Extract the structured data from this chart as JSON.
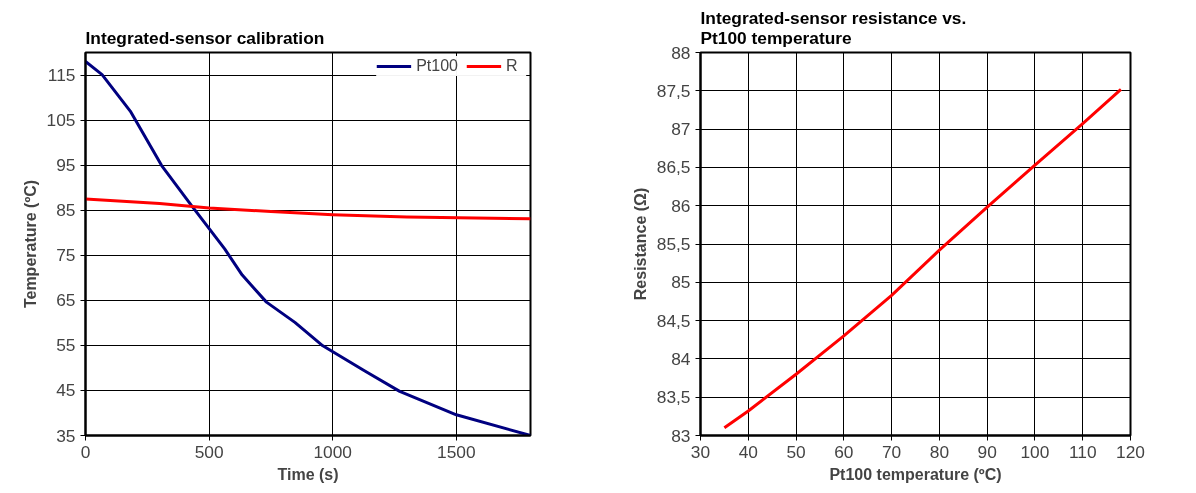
{
  "chart_data": [
    {
      "type": "line",
      "title": "Integrated-sensor calibration",
      "xlabel": "Time (s)",
      "ylabel": "Temperature (ºC)",
      "legend": "top right",
      "grid": true,
      "xlim": [
        0,
        1800
      ],
      "xticks": [
        0,
        500,
        1000,
        1500
      ],
      "ylim": [
        35,
        120
      ],
      "yticks": [
        35,
        45,
        55,
        65,
        75,
        85,
        95,
        105,
        115
      ],
      "series": [
        {
          "name": "Pt100",
          "color": "#000080",
          "x": [
            0,
            67,
            181,
            308,
            429,
            563,
            634,
            732,
            847,
            960,
            1130,
            1271,
            1500,
            1800
          ],
          "values": [
            118,
            115.1,
            107,
            94.9,
            86,
            76.4,
            70.6,
            64.6,
            60.1,
            54.9,
            49.3,
            44.8,
            39.6,
            35
          ]
        },
        {
          "name": "R",
          "color": "#ff0000",
          "x": [
            0,
            300,
            500,
            750,
            1000,
            1300,
            1800
          ],
          "values": [
            87.5,
            86.5,
            85.5,
            84.7,
            84,
            83.5,
            83.1
          ]
        }
      ]
    },
    {
      "type": "line",
      "title": "Integrated-sensor resistance vs. Pt100 temperature",
      "xlabel": "Pt100 temperature (ºC)",
      "ylabel": "Resistance (Ω)",
      "grid": true,
      "xlim": [
        30,
        120
      ],
      "xticks": [
        30,
        40,
        50,
        60,
        70,
        80,
        90,
        100,
        110,
        120
      ],
      "ylim": [
        83,
        88
      ],
      "yticks": [
        83,
        {
          "value": 83.5,
          "label": "83,5"
        },
        84,
        {
          "value": 84.5,
          "label": "84,5"
        },
        85,
        {
          "value": 85.5,
          "label": "85,5"
        },
        86,
        {
          "value": 86.5,
          "label": "86,5"
        },
        87,
        {
          "value": 87.5,
          "label": "87,5"
        },
        88
      ],
      "series": [
        {
          "color": "#ff0000",
          "x": [
            35,
            40,
            50,
            60,
            70,
            80,
            90,
            100,
            110,
            118
          ],
          "values": [
            83.1,
            83.32,
            83.8,
            84.3,
            84.83,
            85.42,
            85.98,
            86.53,
            87.07,
            87.52
          ]
        }
      ]
    }
  ]
}
